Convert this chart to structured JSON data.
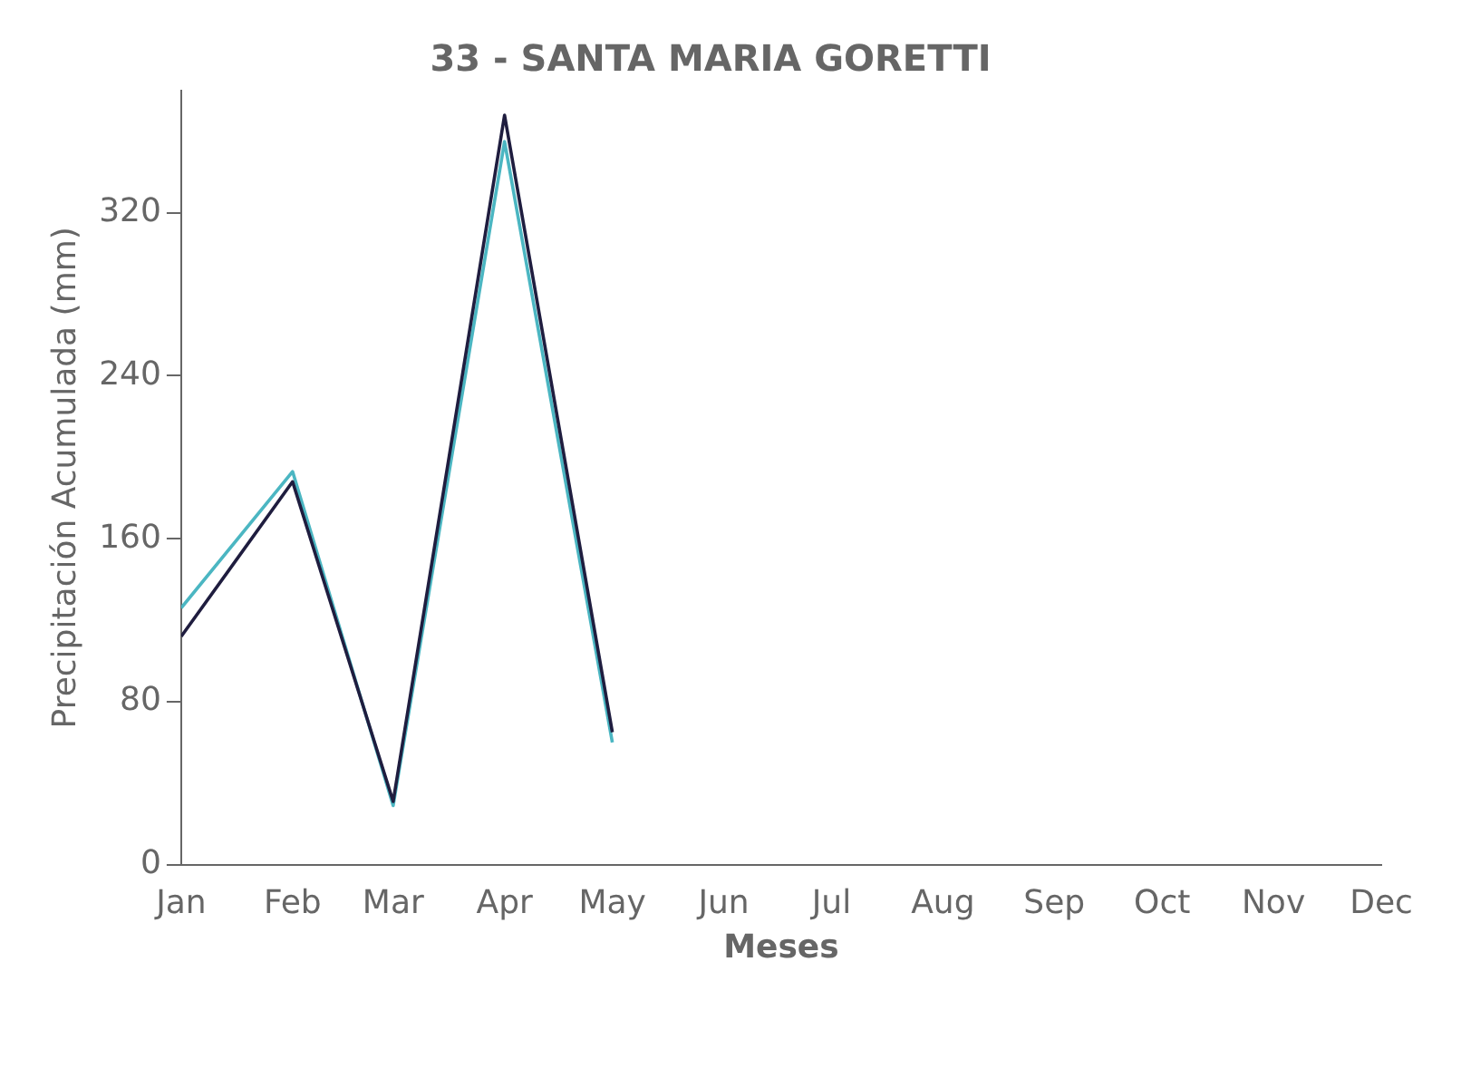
{
  "chart_data": {
    "type": "line",
    "title": "33 - SANTA MARIA GORETTI",
    "xlabel": "Meses",
    "ylabel": "Precipitación Acumulada (mm)",
    "x": [
      "--01-01",
      "--02-01",
      "--03-01",
      "--04-01",
      "--05-01"
    ],
    "series": [
      {
        "color": "#1f1d3f",
        "values": [
          112,
          188,
          31,
          368,
          65
        ]
      },
      {
        "color": "#4bb6c2",
        "values": [
          126,
          193,
          29,
          355,
          60
        ]
      }
    ],
    "xlim": [
      "--01-01",
      "--12-01"
    ],
    "xticks": [
      {
        "value": "--01-01",
        "label": "Jan"
      },
      {
        "value": "--02-01",
        "label": "Feb"
      },
      {
        "value": "--03-01",
        "label": "Mar"
      },
      {
        "value": "--04-01",
        "label": "Apr"
      },
      {
        "value": "--05-01",
        "label": "May"
      },
      {
        "value": "--06-01",
        "label": "Jun"
      },
      {
        "value": "--07-01",
        "label": "Jul"
      },
      {
        "value": "--08-01",
        "label": "Aug"
      },
      {
        "value": "--09-01",
        "label": "Sep"
      },
      {
        "value": "--10-01",
        "label": "Oct"
      },
      {
        "value": "--11-01",
        "label": "Nov"
      },
      {
        "value": "--12-01",
        "label": "Dec"
      }
    ],
    "ylim": [
      0,
      380
    ],
    "yticks": [
      0,
      80,
      160,
      240,
      320
    ],
    "grid": false,
    "legend": false,
    "marker": "none",
    "line_style": "solid"
  }
}
